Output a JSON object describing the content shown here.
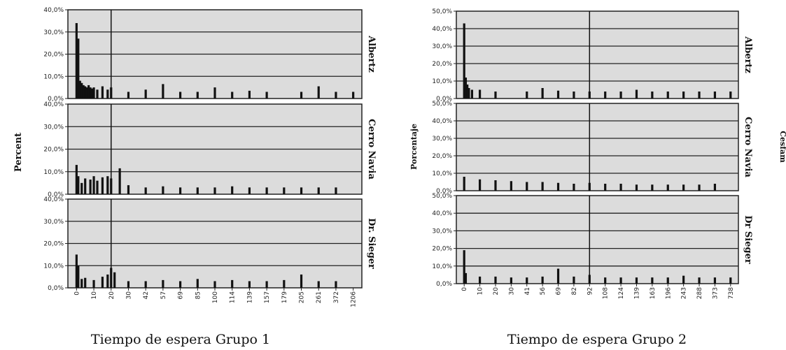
{
  "chart_data": [
    {
      "type": "bar",
      "title": "",
      "xlabel": "Tiempo de espera Grupo 1",
      "ylabel": "Percent",
      "facet_label_side": "right",
      "reference_line_x": "20",
      "x_tick_labels": [
        "0",
        "10",
        "20",
        "30",
        "42",
        "57",
        "69",
        "85",
        "100",
        "114",
        "139",
        "157",
        "179",
        "205",
        "261",
        "372",
        "1206"
      ],
      "panels": [
        {
          "name": "Albertz",
          "y_ticks": [
            "0,0%",
            "10,0%",
            "20,0%",
            "30,0%",
            "40,0%"
          ],
          "ylim": [
            0,
            40
          ],
          "bars": [
            {
              "x": "0",
              "value": 34.0
            },
            {
              "x": "1",
              "value": 27.0
            },
            {
              "x": "2",
              "value": 8.0
            },
            {
              "x": "3",
              "value": 7.0
            },
            {
              "x": "4",
              "value": 6.0
            },
            {
              "x": "5",
              "value": 5.5
            },
            {
              "x": "6",
              "value": 5.0
            },
            {
              "x": "7",
              "value": 6.0
            },
            {
              "x": "8",
              "value": 5.0
            },
            {
              "x": "9",
              "value": 4.5
            },
            {
              "x": "10",
              "value": 5.0
            },
            {
              "x": "12",
              "value": 4.0
            },
            {
              "x": "15",
              "value": 5.5
            },
            {
              "x": "18",
              "value": 4.0
            },
            {
              "x": "20",
              "value": 5.0
            },
            {
              "x": "30",
              "value": 3.0
            },
            {
              "x": "42",
              "value": 4.0
            },
            {
              "x": "57",
              "value": 6.5
            },
            {
              "x": "69",
              "value": 3.0
            },
            {
              "x": "85",
              "value": 3.0
            },
            {
              "x": "100",
              "value": 5.0
            },
            {
              "x": "114",
              "value": 3.0
            },
            {
              "x": "139",
              "value": 3.5
            },
            {
              "x": "157",
              "value": 3.0
            },
            {
              "x": "205",
              "value": 3.0
            },
            {
              "x": "261",
              "value": 5.5
            },
            {
              "x": "372",
              "value": 3.0
            },
            {
              "x": "1206",
              "value": 3.0
            }
          ]
        },
        {
          "name": "Cerro Navia",
          "y_ticks": [
            "0,0%",
            "10,0%",
            "20,0%",
            "30,0%",
            "40,0%"
          ],
          "ylim": [
            0,
            40
          ],
          "bars": [
            {
              "x": "0",
              "value": 13.0
            },
            {
              "x": "1",
              "value": 8.0
            },
            {
              "x": "3",
              "value": 5.0
            },
            {
              "x": "5",
              "value": 7.0
            },
            {
              "x": "8",
              "value": 6.5
            },
            {
              "x": "10",
              "value": 8.0
            },
            {
              "x": "12",
              "value": 6.0
            },
            {
              "x": "15",
              "value": 7.5
            },
            {
              "x": "18",
              "value": 8.0
            },
            {
              "x": "20",
              "value": 7.0
            },
            {
              "x": "25",
              "value": 11.5
            },
            {
              "x": "30",
              "value": 4.0
            },
            {
              "x": "42",
              "value": 3.0
            },
            {
              "x": "57",
              "value": 3.5
            },
            {
              "x": "69",
              "value": 3.0
            },
            {
              "x": "85",
              "value": 3.0
            },
            {
              "x": "100",
              "value": 3.0
            },
            {
              "x": "114",
              "value": 3.5
            },
            {
              "x": "139",
              "value": 3.0
            },
            {
              "x": "157",
              "value": 3.0
            },
            {
              "x": "179",
              "value": 3.0
            },
            {
              "x": "205",
              "value": 3.0
            },
            {
              "x": "261",
              "value": 3.0
            },
            {
              "x": "372",
              "value": 3.0
            }
          ]
        },
        {
          "name": "Dr. Sieger",
          "y_ticks": [
            "0,0%",
            "10,0%",
            "20,0%",
            "30,0%",
            "40,0%"
          ],
          "ylim": [
            0,
            40
          ],
          "bars": [
            {
              "x": "0",
              "value": 15.0
            },
            {
              "x": "1",
              "value": 10.0
            },
            {
              "x": "3",
              "value": 4.0
            },
            {
              "x": "5",
              "value": 4.5
            },
            {
              "x": "10",
              "value": 3.5
            },
            {
              "x": "15",
              "value": 5.0
            },
            {
              "x": "18",
              "value": 6.0
            },
            {
              "x": "20",
              "value": 9.0
            },
            {
              "x": "22",
              "value": 7.0
            },
            {
              "x": "30",
              "value": 3.0
            },
            {
              "x": "42",
              "value": 3.0
            },
            {
              "x": "57",
              "value": 3.5
            },
            {
              "x": "69",
              "value": 3.0
            },
            {
              "x": "85",
              "value": 4.0
            },
            {
              "x": "100",
              "value": 3.0
            },
            {
              "x": "114",
              "value": 3.5
            },
            {
              "x": "139",
              "value": 3.0
            },
            {
              "x": "157",
              "value": 3.0
            },
            {
              "x": "179",
              "value": 3.5
            },
            {
              "x": "205",
              "value": 6.0
            },
            {
              "x": "261",
              "value": 3.0
            },
            {
              "x": "372",
              "value": 3.0
            }
          ]
        }
      ]
    },
    {
      "type": "bar",
      "title": "",
      "xlabel": "Tiempo de espera Grupo 2",
      "ylabel": "Porcentaje",
      "facet_header": "Cesfam",
      "facet_label_side": "right",
      "reference_line_x": "92",
      "x_tick_labels": [
        "0",
        "10",
        "20",
        "30",
        "41",
        "56",
        "69",
        "82",
        "92",
        "108",
        "124",
        "139",
        "163",
        "196",
        "243",
        "288",
        "373",
        "738"
      ],
      "panels": [
        {
          "name": "Albertz",
          "y_ticks": [
            "0,0%",
            "10,0%",
            "20,0%",
            "30,0%",
            "40,0%",
            "50,0%"
          ],
          "ylim": [
            0,
            50
          ],
          "bars": [
            {
              "x": "0",
              "value": 43.0
            },
            {
              "x": "1",
              "value": 12.0
            },
            {
              "x": "2",
              "value": 8.0
            },
            {
              "x": "3",
              "value": 6.0
            },
            {
              "x": "5",
              "value": 5.0
            },
            {
              "x": "10",
              "value": 5.0
            },
            {
              "x": "20",
              "value": 4.0
            },
            {
              "x": "41",
              "value": 4.0
            },
            {
              "x": "56",
              "value": 6.0
            },
            {
              "x": "69",
              "value": 4.5
            },
            {
              "x": "82",
              "value": 4.0
            },
            {
              "x": "92",
              "value": 4.0
            },
            {
              "x": "108",
              "value": 4.0
            },
            {
              "x": "124",
              "value": 4.0
            },
            {
              "x": "139",
              "value": 5.0
            },
            {
              "x": "163",
              "value": 4.0
            },
            {
              "x": "196",
              "value": 4.0
            },
            {
              "x": "243",
              "value": 4.0
            },
            {
              "x": "288",
              "value": 4.0
            },
            {
              "x": "373",
              "value": 4.0
            },
            {
              "x": "738",
              "value": 4.0
            }
          ]
        },
        {
          "name": "Cerro Navia",
          "y_ticks": [
            "0,0%",
            "10,0%",
            "20,0%",
            "30,0%",
            "40,0%",
            "50,0%"
          ],
          "ylim": [
            0,
            50
          ],
          "bars": [
            {
              "x": "0",
              "value": 8.0
            },
            {
              "x": "10",
              "value": 6.5
            },
            {
              "x": "20",
              "value": 6.0
            },
            {
              "x": "30",
              "value": 5.5
            },
            {
              "x": "41",
              "value": 5.0
            },
            {
              "x": "56",
              "value": 5.0
            },
            {
              "x": "69",
              "value": 4.5
            },
            {
              "x": "82",
              "value": 4.0
            },
            {
              "x": "92",
              "value": 4.5
            },
            {
              "x": "108",
              "value": 4.0
            },
            {
              "x": "124",
              "value": 4.0
            },
            {
              "x": "139",
              "value": 3.5
            },
            {
              "x": "163",
              "value": 3.5
            },
            {
              "x": "196",
              "value": 3.5
            },
            {
              "x": "243",
              "value": 3.5
            },
            {
              "x": "288",
              "value": 3.5
            },
            {
              "x": "373",
              "value": 4.0
            }
          ]
        },
        {
          "name": "Dr Sieger",
          "y_ticks": [
            "0,0%",
            "10,0%",
            "20,0%",
            "30,0%",
            "40,0%",
            "50,0%"
          ],
          "ylim": [
            0,
            50
          ],
          "bars": [
            {
              "x": "0",
              "value": 19.0
            },
            {
              "x": "1",
              "value": 6.0
            },
            {
              "x": "10",
              "value": 4.0
            },
            {
              "x": "20",
              "value": 4.0
            },
            {
              "x": "30",
              "value": 3.5
            },
            {
              "x": "41",
              "value": 3.5
            },
            {
              "x": "56",
              "value": 4.0
            },
            {
              "x": "69",
              "value": 8.5
            },
            {
              "x": "82",
              "value": 4.0
            },
            {
              "x": "92",
              "value": 5.0
            },
            {
              "x": "108",
              "value": 3.5
            },
            {
              "x": "124",
              "value": 3.5
            },
            {
              "x": "139",
              "value": 3.5
            },
            {
              "x": "163",
              "value": 3.5
            },
            {
              "x": "196",
              "value": 3.5
            },
            {
              "x": "243",
              "value": 4.5
            },
            {
              "x": "288",
              "value": 3.5
            },
            {
              "x": "373",
              "value": 3.5
            },
            {
              "x": "738",
              "value": 3.5
            }
          ]
        }
      ]
    }
  ]
}
